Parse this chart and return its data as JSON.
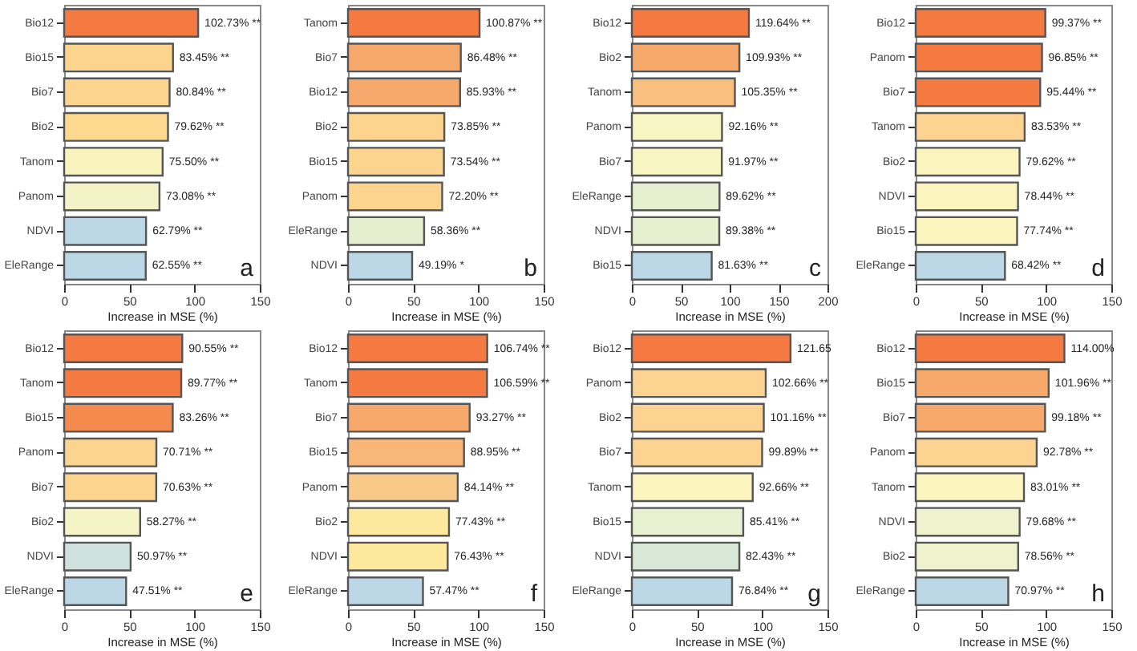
{
  "chart_data": [
    {
      "type": "bar",
      "orientation": "horizontal",
      "categories": [
        "Bio12",
        "Bio15",
        "Bio7",
        "Bio2",
        "Tanom",
        "Panom",
        "NDVI",
        "EleRange"
      ],
      "values": [
        102.73,
        83.45,
        80.84,
        79.62,
        75.5,
        73.08,
        62.79,
        62.55
      ],
      "value_labels": [
        "102.73% **",
        "83.45% **",
        "80.84% **",
        "79.62% **",
        "75.50% **",
        "73.08% **",
        "62.79% **",
        "62.55% **"
      ],
      "colors": [
        "#f47a41",
        "#fdd48d",
        "#fdd48d",
        "#fdd990",
        "#f9f4bd",
        "#f4f3c7",
        "#bcd8e6",
        "#bcd8e6"
      ],
      "xlabel": "Increase in MSE (%)",
      "xlim": [
        0,
        150
      ],
      "xticks": [
        0,
        50,
        100,
        150
      ],
      "annotations": [
        "a"
      ]
    },
    {
      "type": "bar",
      "orientation": "horizontal",
      "categories": [
        "Tanom",
        "Bio7",
        "Bio12",
        "Bio2",
        "Bio15",
        "Panom",
        "EleRange",
        "NDVI"
      ],
      "values": [
        100.87,
        86.48,
        85.93,
        73.85,
        73.54,
        72.2,
        58.36,
        49.19
      ],
      "value_labels": [
        "100.87% **",
        "86.48% **",
        "85.93% **",
        "73.85% **",
        "73.54% **",
        "72.20% **",
        "58.36% **",
        "49.19% *"
      ],
      "colors": [
        "#f47a41",
        "#f6a96b",
        "#f6a96b",
        "#fdd48d",
        "#fdd48d",
        "#fdd48d",
        "#e6eed0",
        "#bcd8e6"
      ],
      "xlabel": "Increase in MSE (%)",
      "xlim": [
        0,
        150
      ],
      "xticks": [
        0,
        50,
        100,
        150
      ],
      "annotations": [
        "b"
      ]
    },
    {
      "type": "bar",
      "orientation": "horizontal",
      "categories": [
        "Bio12",
        "Bio2",
        "Tanom",
        "Panom",
        "Bio7",
        "EleRange",
        "NDVI",
        "Bio15"
      ],
      "values": [
        119.64,
        109.93,
        105.35,
        92.16,
        91.97,
        89.62,
        89.38,
        81.63
      ],
      "value_labels": [
        "119.64% **",
        "109.93% **",
        "105.35% **",
        "92.16% **",
        "91.97% **",
        "89.62% **",
        "89.38% **",
        "81.63% **"
      ],
      "colors": [
        "#f47a41",
        "#f6a96b",
        "#f9bf7e",
        "#f7f5c2",
        "#f7f5c2",
        "#e6efcf",
        "#e6efcf",
        "#bcd8e6"
      ],
      "xlabel": "Increase in MSE (%)",
      "xlim": [
        0,
        200
      ],
      "xticks": [
        0,
        50,
        100,
        150,
        200
      ],
      "annotations": [
        "c"
      ]
    },
    {
      "type": "bar",
      "orientation": "horizontal",
      "categories": [
        "Bio12",
        "Panom",
        "Bio7",
        "Tanom",
        "Bio2",
        "NDVI",
        "Bio15",
        "EleRange"
      ],
      "values": [
        99.37,
        96.85,
        95.44,
        83.53,
        79.62,
        78.44,
        77.74,
        68.42
      ],
      "value_labels": [
        "99.37% **",
        "96.85% **",
        "95.44% **",
        "83.53% **",
        "79.62% **",
        "78.44% **",
        "77.74% **",
        "68.42% **"
      ],
      "colors": [
        "#f47a41",
        "#f47a41",
        "#f47a41",
        "#fcd390",
        "#fbf4bc",
        "#fbf4bc",
        "#fbf4bc",
        "#bcd8e6"
      ],
      "xlabel": "Increase in MSE (%)",
      "xlim": [
        0,
        150
      ],
      "xticks": [
        0,
        50,
        100,
        150
      ],
      "annotations": [
        "d"
      ]
    },
    {
      "type": "bar",
      "orientation": "horizontal",
      "categories": [
        "Bio12",
        "Tanom",
        "Bio15",
        "Panom",
        "Bio7",
        "Bio2",
        "NDVI",
        "EleRange"
      ],
      "values": [
        90.55,
        89.77,
        83.26,
        70.71,
        70.63,
        58.27,
        50.97,
        47.51
      ],
      "value_labels": [
        "90.55% **",
        "89.77% **",
        "83.26% **",
        "70.71% **",
        "70.63% **",
        "58.27% **",
        "50.97% **",
        "47.51% **"
      ],
      "colors": [
        "#f47a41",
        "#f47a41",
        "#f58a4f",
        "#fdd48d",
        "#fdd48d",
        "#f5f4c6",
        "#cfe1dc",
        "#bcd8e6"
      ],
      "xlabel": "Increase in MSE (%)",
      "xlim": [
        0,
        150
      ],
      "xticks": [
        0,
        50,
        100,
        150
      ],
      "annotations": [
        "e"
      ]
    },
    {
      "type": "bar",
      "orientation": "horizontal",
      "categories": [
        "Bio12",
        "Tanom",
        "Bio7",
        "Bio15",
        "Panom",
        "Bio2",
        "NDVI",
        "EleRange"
      ],
      "values": [
        106.74,
        106.59,
        93.27,
        88.95,
        84.14,
        77.43,
        76.43,
        57.47
      ],
      "value_labels": [
        "106.74% **",
        "106.59% **",
        "93.27% **",
        "88.95% **",
        "84.14% **",
        "77.43% **",
        "76.43% **",
        "57.47% **"
      ],
      "colors": [
        "#f47a41",
        "#f47a41",
        "#f6a96b",
        "#f8b679",
        "#f9c98a",
        "#fde89e",
        "#fde89e",
        "#bcd8e6"
      ],
      "xlabel": "Increase in MSE (%)",
      "xlim": [
        0,
        150
      ],
      "xticks": [
        0,
        50,
        100,
        150
      ],
      "annotations": [
        "f"
      ]
    },
    {
      "type": "bar",
      "orientation": "horizontal",
      "categories": [
        "Bio12",
        "Panom",
        "Bio2",
        "Bio7",
        "Tanom",
        "Bio15",
        "NDVI",
        "EleRange"
      ],
      "values": [
        121.65,
        102.66,
        101.16,
        99.89,
        92.66,
        85.41,
        82.43,
        76.84
      ],
      "value_labels": [
        "121.65",
        "102.66% **",
        "101.16% **",
        "99.89% **",
        "92.66% **",
        "85.41% **",
        "82.43% **",
        "76.84% **"
      ],
      "colors": [
        "#f47a41",
        "#fcd390",
        "#fcd390",
        "#fcd390",
        "#fbf4bc",
        "#e8f0d2",
        "#d8e8d6",
        "#bcd8e6"
      ],
      "xlabel": "Increase in MSE (%)",
      "xlim": [
        0,
        150
      ],
      "xticks": [
        0,
        50,
        100,
        150
      ],
      "annotations": [
        "g"
      ]
    },
    {
      "type": "bar",
      "orientation": "horizontal",
      "categories": [
        "Bio12",
        "Bio15",
        "Bio7",
        "Panom",
        "Tanom",
        "NDVI",
        "Bio2",
        "EleRange"
      ],
      "values": [
        114.0,
        101.96,
        99.18,
        92.78,
        83.01,
        79.68,
        78.56,
        70.97
      ],
      "value_labels": [
        "114.00%",
        "101.96% **",
        "99.18% **",
        "92.78% **",
        "83.01% **",
        "79.68% **",
        "78.56% **",
        "70.97% **"
      ],
      "colors": [
        "#f47a41",
        "#f6a96b",
        "#f6a96b",
        "#fcd390",
        "#fbf4bc",
        "#eef3cd",
        "#eef3cd",
        "#bcd8e6"
      ],
      "xlabel": "Increase in MSE (%)",
      "xlim": [
        0,
        150
      ],
      "xticks": [
        0,
        50,
        100,
        150
      ],
      "annotations": [
        "h"
      ]
    }
  ]
}
